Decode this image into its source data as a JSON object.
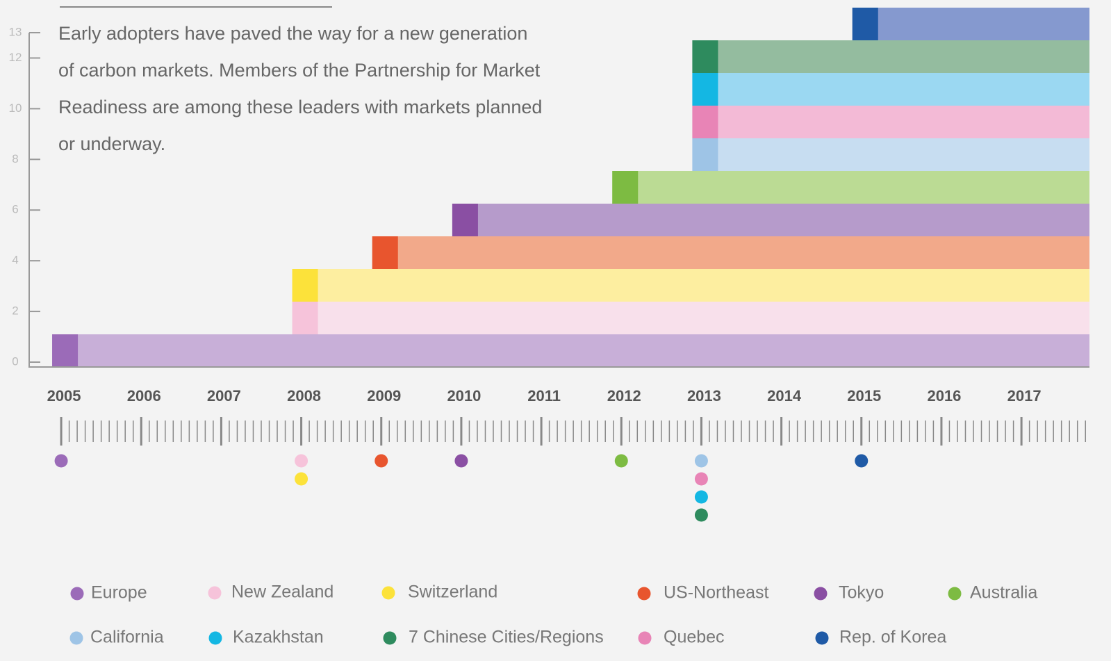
{
  "chart_data": {
    "type": "timeline",
    "text_lines": [
      "Early adopters have paved the way for a new generation",
      "of carbon markets. Members of the Partnership for Market",
      "Readiness are among these leaders with markets planned",
      "or underway."
    ],
    "ylim": [
      0,
      13
    ],
    "yticks": [
      0,
      2,
      4,
      6,
      8,
      10,
      12,
      13
    ],
    "xlim": [
      2004.6,
      2017.85
    ],
    "xticks": [
      2005,
      2006,
      2007,
      2008,
      2009,
      2010,
      2011,
      2012,
      2013,
      2014,
      2015,
      2016,
      2017
    ],
    "series": [
      {
        "name": "Europe",
        "start": 2005,
        "color": "#9b6bb8",
        "bar_color": "#c8afd8"
      },
      {
        "name": "New Zealand",
        "start": 2008,
        "color": "#f6c3da",
        "bar_color": "#f8e0eb"
      },
      {
        "name": "Switzerland",
        "start": 2008,
        "color": "#fce23a",
        "bar_color": "#fdeea0"
      },
      {
        "name": "US-Northeast",
        "start": 2009,
        "color": "#e8552e",
        "bar_color": "#f2a98a"
      },
      {
        "name": "Tokyo",
        "start": 2010,
        "color": "#8a4fa3",
        "bar_color": "#b69bcb"
      },
      {
        "name": "Australia",
        "start": 2012,
        "color": "#7dbb42",
        "bar_color": "#bbdb94"
      },
      {
        "name": "California",
        "start": 2013,
        "color": "#9ec4e6",
        "bar_color": "#c7ddf1"
      },
      {
        "name": "Quebec",
        "start": 2013,
        "color": "#e884b6",
        "bar_color": "#f3bad6"
      },
      {
        "name": "Kazakhstan",
        "start": 2013,
        "color": "#14b7e3",
        "bar_color": "#9bd8f2"
      },
      {
        "name": "7 Chinese Cities/Regions",
        "start": 2013,
        "color": "#2e8b5e",
        "bar_color": "#94bc9f"
      },
      {
        "name": "Rep. of Korea",
        "start": 2015,
        "color": "#1f5aa6",
        "bar_color": "#8599cf"
      }
    ]
  }
}
